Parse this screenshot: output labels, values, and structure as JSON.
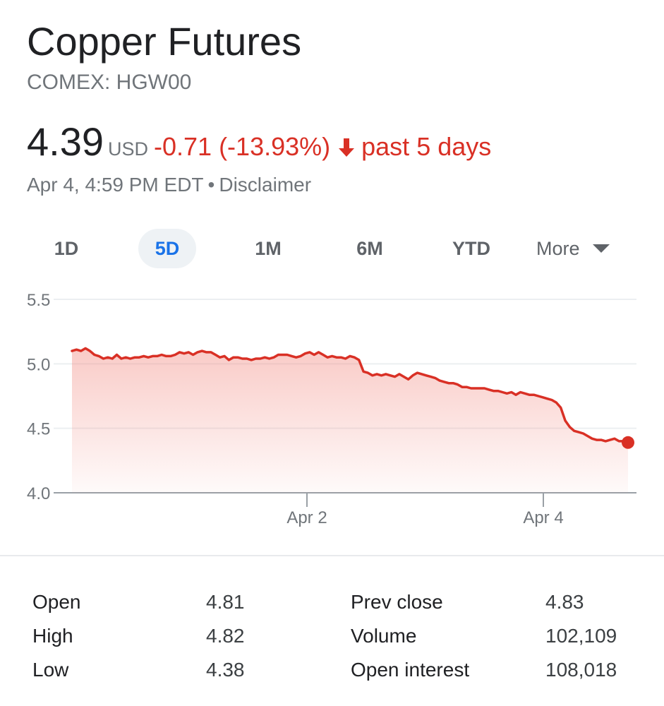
{
  "header": {
    "title": "Copper Futures",
    "ticker": "COMEX: HGW00"
  },
  "quote": {
    "price": "4.39",
    "currency": "USD",
    "change": "-0.71 (-13.93%)",
    "direction_icon": "arrow-down-icon",
    "period": "past 5 days",
    "timestamp": "Apr 4, 4:59 PM EDT",
    "separator": "•",
    "disclaimer": "Disclaimer",
    "negative_color": "#d93025"
  },
  "ranges": {
    "items": [
      "1D",
      "5D",
      "1M",
      "6M",
      "YTD"
    ],
    "active": "5D",
    "more_label": "More",
    "more_icon": "caret-down-icon"
  },
  "chart_data": {
    "type": "area",
    "y_ticks": [
      "5.5",
      "5.0",
      "4.5",
      "4.0"
    ],
    "ylim": [
      4.0,
      5.5
    ],
    "x_ticks": [
      "Apr 2",
      "Apr 4"
    ],
    "grid": true,
    "line_color": "#d93025",
    "fill_color": "#f28b82",
    "series": [
      {
        "values": [
          5.1,
          5.11,
          5.1,
          5.12,
          5.1,
          5.07,
          5.06,
          5.04,
          5.05,
          5.04,
          5.07,
          5.04,
          5.05,
          5.04,
          5.05,
          5.05,
          5.06,
          5.05,
          5.06,
          5.06,
          5.07,
          5.06,
          5.06,
          5.07,
          5.09,
          5.08,
          5.09,
          5.07,
          5.09,
          5.1,
          5.09,
          5.09,
          5.07,
          5.05,
          5.06,
          5.03,
          5.05,
          5.05,
          5.04,
          5.04,
          5.03,
          5.04,
          5.04,
          5.05,
          5.04,
          5.05,
          5.07,
          5.07,
          5.07,
          5.06,
          5.05,
          5.06,
          5.08,
          5.09,
          5.07,
          5.09,
          5.07,
          5.05,
          5.06,
          5.05,
          5.05,
          5.04,
          5.06,
          5.05,
          5.03,
          4.94,
          4.93,
          4.91,
          4.92,
          4.91,
          4.92,
          4.91,
          4.9,
          4.92,
          4.9,
          4.88,
          4.91,
          4.93,
          4.92,
          4.91,
          4.9,
          4.89,
          4.87,
          4.86,
          4.85,
          4.85,
          4.84,
          4.82,
          4.82,
          4.81,
          4.81,
          4.81,
          4.81,
          4.8,
          4.79,
          4.79,
          4.78,
          4.77,
          4.78,
          4.76,
          4.78,
          4.77,
          4.76,
          4.76,
          4.75,
          4.74,
          4.73,
          4.72,
          4.7,
          4.66,
          4.56,
          4.51,
          4.48,
          4.47,
          4.46,
          4.44,
          4.42,
          4.41,
          4.41,
          4.4,
          4.41,
          4.42,
          4.4,
          4.4,
          4.39
        ],
        "last": 4.39
      }
    ]
  },
  "stats": [
    {
      "label1": "Open",
      "value1": "4.81",
      "label2": "Prev close",
      "value2": "4.83"
    },
    {
      "label1": "High",
      "value1": "4.82",
      "label2": "Volume",
      "value2": "102,109"
    },
    {
      "label1": "Low",
      "value1": "4.38",
      "label2": "Open interest",
      "value2": "108,018"
    }
  ]
}
